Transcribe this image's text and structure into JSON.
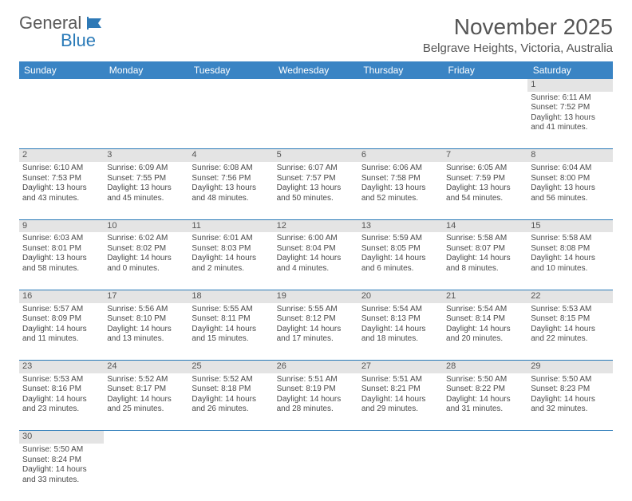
{
  "logo": {
    "text1": "General",
    "text2": "Blue",
    "icon_color": "#2e79b6"
  },
  "header": {
    "month_title": "November 2025",
    "location": "Belgrave Heights, Victoria, Australia"
  },
  "colors": {
    "header_bg": "#3a84c4",
    "rule": "#2a7ab8",
    "daynum_bg": "#e4e4e4",
    "text": "#4a4a4a"
  },
  "day_names": [
    "Sunday",
    "Monday",
    "Tuesday",
    "Wednesday",
    "Thursday",
    "Friday",
    "Saturday"
  ],
  "weeks": [
    {
      "nums": [
        "",
        "",
        "",
        "",
        "",
        "",
        "1"
      ],
      "cells": [
        null,
        null,
        null,
        null,
        null,
        null,
        {
          "sunrise": "Sunrise: 6:11 AM",
          "sunset": "Sunset: 7:52 PM",
          "daylight": "Daylight: 13 hours and 41 minutes."
        }
      ]
    },
    {
      "nums": [
        "2",
        "3",
        "4",
        "5",
        "6",
        "7",
        "8"
      ],
      "cells": [
        {
          "sunrise": "Sunrise: 6:10 AM",
          "sunset": "Sunset: 7:53 PM",
          "daylight": "Daylight: 13 hours and 43 minutes."
        },
        {
          "sunrise": "Sunrise: 6:09 AM",
          "sunset": "Sunset: 7:55 PM",
          "daylight": "Daylight: 13 hours and 45 minutes."
        },
        {
          "sunrise": "Sunrise: 6:08 AM",
          "sunset": "Sunset: 7:56 PM",
          "daylight": "Daylight: 13 hours and 48 minutes."
        },
        {
          "sunrise": "Sunrise: 6:07 AM",
          "sunset": "Sunset: 7:57 PM",
          "daylight": "Daylight: 13 hours and 50 minutes."
        },
        {
          "sunrise": "Sunrise: 6:06 AM",
          "sunset": "Sunset: 7:58 PM",
          "daylight": "Daylight: 13 hours and 52 minutes."
        },
        {
          "sunrise": "Sunrise: 6:05 AM",
          "sunset": "Sunset: 7:59 PM",
          "daylight": "Daylight: 13 hours and 54 minutes."
        },
        {
          "sunrise": "Sunrise: 6:04 AM",
          "sunset": "Sunset: 8:00 PM",
          "daylight": "Daylight: 13 hours and 56 minutes."
        }
      ]
    },
    {
      "nums": [
        "9",
        "10",
        "11",
        "12",
        "13",
        "14",
        "15"
      ],
      "cells": [
        {
          "sunrise": "Sunrise: 6:03 AM",
          "sunset": "Sunset: 8:01 PM",
          "daylight": "Daylight: 13 hours and 58 minutes."
        },
        {
          "sunrise": "Sunrise: 6:02 AM",
          "sunset": "Sunset: 8:02 PM",
          "daylight": "Daylight: 14 hours and 0 minutes."
        },
        {
          "sunrise": "Sunrise: 6:01 AM",
          "sunset": "Sunset: 8:03 PM",
          "daylight": "Daylight: 14 hours and 2 minutes."
        },
        {
          "sunrise": "Sunrise: 6:00 AM",
          "sunset": "Sunset: 8:04 PM",
          "daylight": "Daylight: 14 hours and 4 minutes."
        },
        {
          "sunrise": "Sunrise: 5:59 AM",
          "sunset": "Sunset: 8:05 PM",
          "daylight": "Daylight: 14 hours and 6 minutes."
        },
        {
          "sunrise": "Sunrise: 5:58 AM",
          "sunset": "Sunset: 8:07 PM",
          "daylight": "Daylight: 14 hours and 8 minutes."
        },
        {
          "sunrise": "Sunrise: 5:58 AM",
          "sunset": "Sunset: 8:08 PM",
          "daylight": "Daylight: 14 hours and 10 minutes."
        }
      ]
    },
    {
      "nums": [
        "16",
        "17",
        "18",
        "19",
        "20",
        "21",
        "22"
      ],
      "cells": [
        {
          "sunrise": "Sunrise: 5:57 AM",
          "sunset": "Sunset: 8:09 PM",
          "daylight": "Daylight: 14 hours and 11 minutes."
        },
        {
          "sunrise": "Sunrise: 5:56 AM",
          "sunset": "Sunset: 8:10 PM",
          "daylight": "Daylight: 14 hours and 13 minutes."
        },
        {
          "sunrise": "Sunrise: 5:55 AM",
          "sunset": "Sunset: 8:11 PM",
          "daylight": "Daylight: 14 hours and 15 minutes."
        },
        {
          "sunrise": "Sunrise: 5:55 AM",
          "sunset": "Sunset: 8:12 PM",
          "daylight": "Daylight: 14 hours and 17 minutes."
        },
        {
          "sunrise": "Sunrise: 5:54 AM",
          "sunset": "Sunset: 8:13 PM",
          "daylight": "Daylight: 14 hours and 18 minutes."
        },
        {
          "sunrise": "Sunrise: 5:54 AM",
          "sunset": "Sunset: 8:14 PM",
          "daylight": "Daylight: 14 hours and 20 minutes."
        },
        {
          "sunrise": "Sunrise: 5:53 AM",
          "sunset": "Sunset: 8:15 PM",
          "daylight": "Daylight: 14 hours and 22 minutes."
        }
      ]
    },
    {
      "nums": [
        "23",
        "24",
        "25",
        "26",
        "27",
        "28",
        "29"
      ],
      "cells": [
        {
          "sunrise": "Sunrise: 5:53 AM",
          "sunset": "Sunset: 8:16 PM",
          "daylight": "Daylight: 14 hours and 23 minutes."
        },
        {
          "sunrise": "Sunrise: 5:52 AM",
          "sunset": "Sunset: 8:17 PM",
          "daylight": "Daylight: 14 hours and 25 minutes."
        },
        {
          "sunrise": "Sunrise: 5:52 AM",
          "sunset": "Sunset: 8:18 PM",
          "daylight": "Daylight: 14 hours and 26 minutes."
        },
        {
          "sunrise": "Sunrise: 5:51 AM",
          "sunset": "Sunset: 8:19 PM",
          "daylight": "Daylight: 14 hours and 28 minutes."
        },
        {
          "sunrise": "Sunrise: 5:51 AM",
          "sunset": "Sunset: 8:21 PM",
          "daylight": "Daylight: 14 hours and 29 minutes."
        },
        {
          "sunrise": "Sunrise: 5:50 AM",
          "sunset": "Sunset: 8:22 PM",
          "daylight": "Daylight: 14 hours and 31 minutes."
        },
        {
          "sunrise": "Sunrise: 5:50 AM",
          "sunset": "Sunset: 8:23 PM",
          "daylight": "Daylight: 14 hours and 32 minutes."
        }
      ]
    },
    {
      "nums": [
        "30",
        "",
        "",
        "",
        "",
        "",
        ""
      ],
      "cells": [
        {
          "sunrise": "Sunrise: 5:50 AM",
          "sunset": "Sunset: 8:24 PM",
          "daylight": "Daylight: 14 hours and 33 minutes."
        },
        null,
        null,
        null,
        null,
        null,
        null
      ]
    }
  ]
}
